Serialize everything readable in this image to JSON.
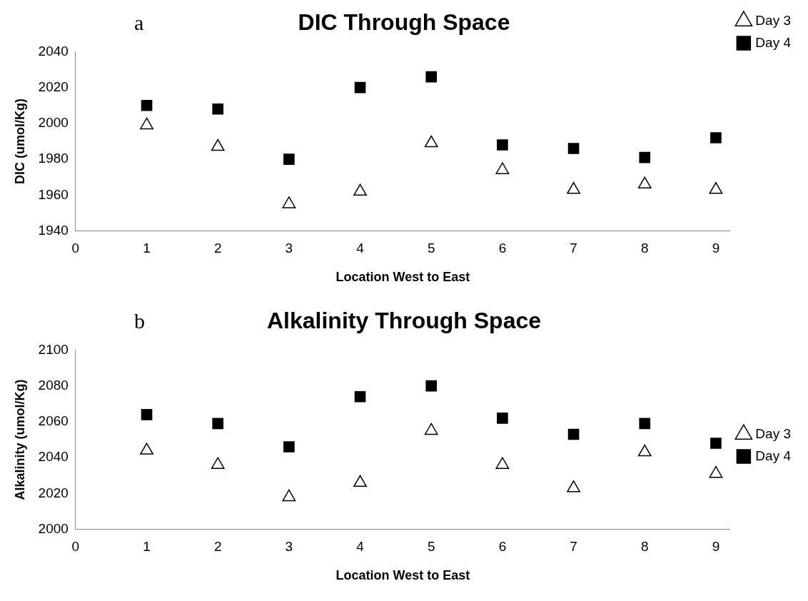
{
  "chart_data": [
    {
      "type": "scatter",
      "title": "DIC Through Space",
      "xlabel": "Location West to East",
      "ylabel": "DIC (umol/Kg)",
      "annotations": [
        "a"
      ],
      "x": [
        1,
        2,
        3,
        4,
        5,
        6,
        7,
        8,
        9
      ],
      "xlim": [
        0,
        9.2
      ],
      "xticks": [
        0,
        1,
        2,
        3,
        4,
        5,
        6,
        7,
        8,
        9
      ],
      "ylim": [
        1940,
        2040
      ],
      "yticks": [
        1940,
        1960,
        1980,
        2000,
        2020,
        2040
      ],
      "grid": false,
      "legend": "top right",
      "series": [
        {
          "name": "Day 3",
          "color": "#000000",
          "marker": "triangle",
          "values": [
            1999,
            1987,
            1955,
            1962,
            1989,
            1974,
            1963,
            1966,
            1963
          ]
        },
        {
          "name": "Day 4",
          "color": "#000000",
          "marker": "square",
          "values": [
            2010,
            2008,
            1980,
            2020,
            2026,
            1988,
            1986,
            1981,
            1992
          ]
        }
      ]
    },
    {
      "type": "scatter",
      "title": "Alkalinity Through Space",
      "xlabel": "Location West to East",
      "ylabel": "Alkalinity (umol/Kg)",
      "annotations": [
        "b"
      ],
      "x": [
        1,
        2,
        3,
        4,
        5,
        6,
        7,
        8,
        9
      ],
      "xlim": [
        0,
        9.2
      ],
      "xticks": [
        0,
        1,
        2,
        3,
        4,
        5,
        6,
        7,
        8,
        9
      ],
      "ylim": [
        2000,
        2100
      ],
      "yticks": [
        2000,
        2020,
        2040,
        2060,
        2080,
        2100
      ],
      "grid": false,
      "legend": "right",
      "series": [
        {
          "name": "Day 3",
          "color": "#000000",
          "marker": "triangle",
          "values": [
            2044,
            2036,
            2018,
            2026,
            2055,
            2036,
            2023,
            2043,
            2031
          ]
        },
        {
          "name": "Day 4",
          "color": "#000000",
          "marker": "square",
          "values": [
            2064,
            2059,
            2046,
            2074,
            2080,
            2062,
            2053,
            2059,
            2048
          ]
        }
      ]
    }
  ]
}
